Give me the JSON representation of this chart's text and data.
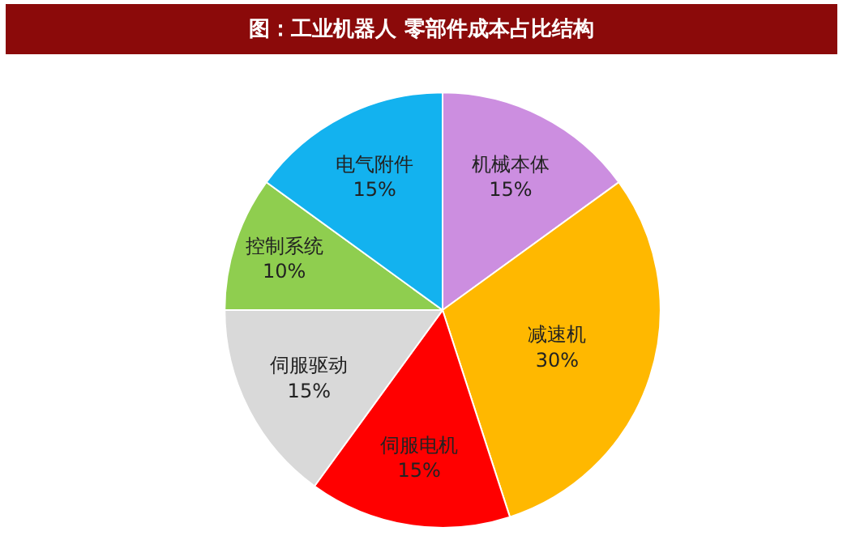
{
  "chart_data": {
    "type": "pie",
    "title": "图：工业机器人 零部件成本占比结构",
    "categories": [
      "机械本体",
      "减速机",
      "伺服电机",
      "伺服驱动",
      "控制系统",
      "电气附件"
    ],
    "values": [
      15,
      30,
      15,
      15,
      10,
      15
    ],
    "value_labels": [
      "15%",
      "30%",
      "15%",
      "15%",
      "10%",
      "15%"
    ],
    "colors": [
      "#cc8ee0",
      "#ffb800",
      "#ff0000",
      "#d9d9d9",
      "#8fce4f",
      "#13b2ef"
    ],
    "legend": false
  }
}
